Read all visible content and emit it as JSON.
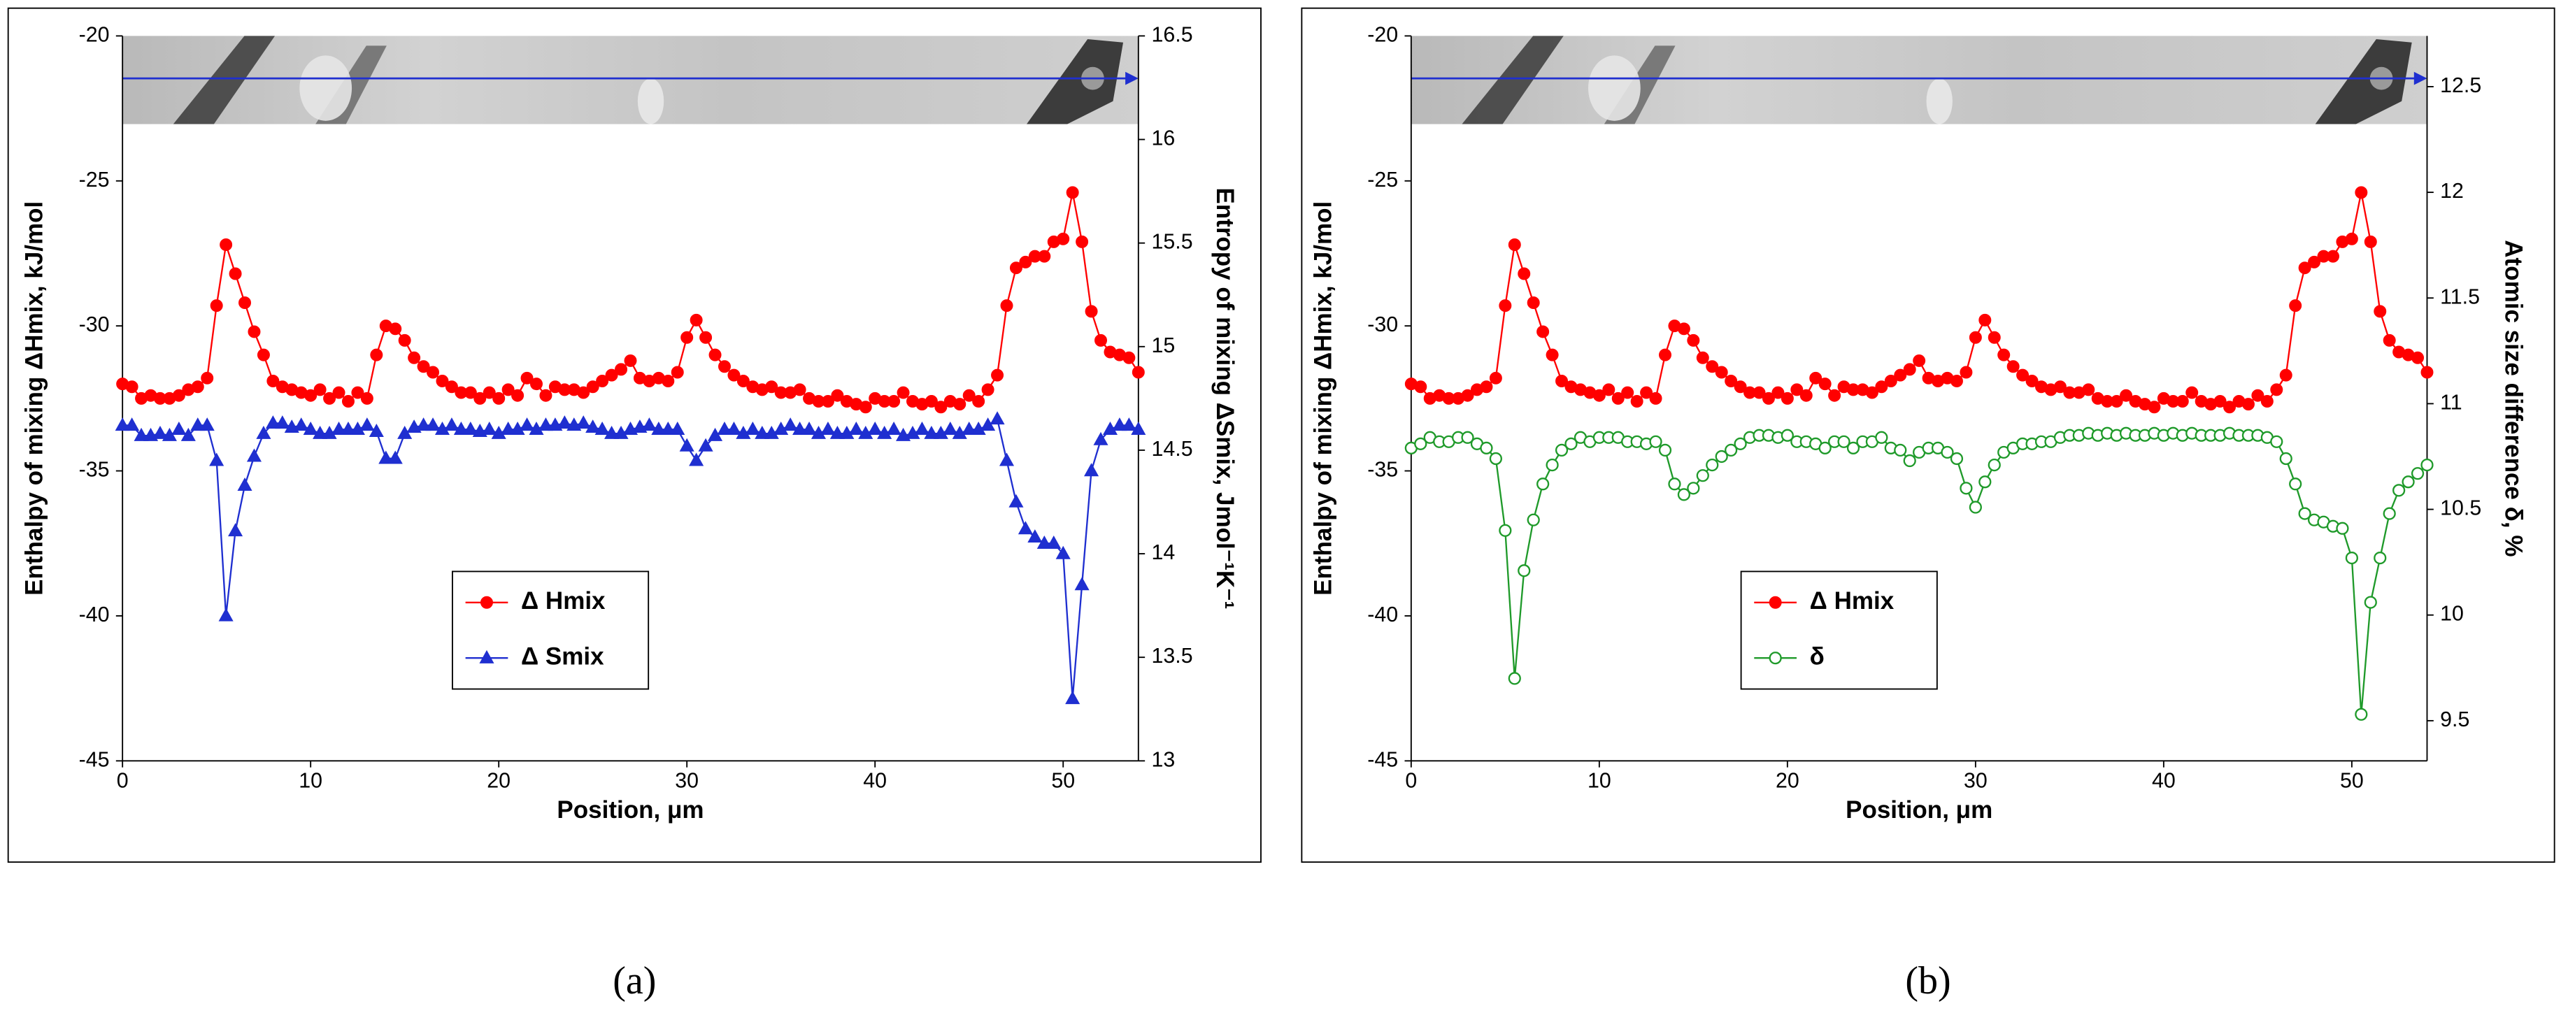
{
  "chart_data": [
    {
      "type": "line",
      "label": "(a)",
      "xlabel": "Position, μm",
      "ylabel": "Enthalpy of mixing  ΔHmix, kJ/mol",
      "y2label": "Entropy of mixing  ΔSmix, Jmol⁻¹K⁻¹",
      "xlim": [
        0,
        54
      ],
      "xticks": [
        0,
        10,
        20,
        30,
        40,
        50
      ],
      "ylim": [
        -45,
        -20
      ],
      "yticks": [
        -45,
        -40,
        -35,
        -30,
        -25,
        -20
      ],
      "y2lim": [
        13,
        16.5
      ],
      "y2ticks": [
        13,
        13.5,
        14,
        14.5,
        15,
        15.5,
        16,
        16.5
      ],
      "legend": "lower center",
      "x": [
        0,
        0.5,
        1,
        1.5,
        2,
        2.5,
        3,
        3.5,
        4,
        4.5,
        5,
        5.5,
        6,
        6.5,
        7,
        7.5,
        8,
        8.5,
        9,
        9.5,
        10,
        10.5,
        11,
        11.5,
        12,
        12.5,
        13,
        13.5,
        14,
        14.5,
        15,
        15.5,
        16,
        16.5,
        17,
        17.5,
        18,
        18.5,
        19,
        19.5,
        20,
        20.5,
        21,
        21.5,
        22,
        22.5,
        23,
        23.5,
        24,
        24.5,
        25,
        25.5,
        26,
        26.5,
        27,
        27.5,
        28,
        28.5,
        29,
        29.5,
        30,
        30.5,
        31,
        31.5,
        32,
        32.5,
        33,
        33.5,
        34,
        34.5,
        35,
        35.5,
        36,
        36.5,
        37,
        37.5,
        38,
        38.5,
        39,
        39.5,
        40,
        40.5,
        41,
        41.5,
        42,
        42.5,
        43,
        43.5,
        44,
        44.5,
        45,
        45.5,
        46,
        46.5,
        47,
        47.5,
        48,
        48.5,
        49,
        49.5,
        50,
        50.5,
        51,
        51.5,
        52,
        52.5,
        53,
        53.5,
        54
      ],
      "series": [
        {
          "name": "Δ Hmix",
          "color": "#ff0000",
          "marker": "circle",
          "values": [
            -32.0,
            -32.1,
            -32.5,
            -32.4,
            -32.5,
            -32.5,
            -32.4,
            -32.2,
            -32.1,
            -31.8,
            -29.3,
            -27.2,
            -28.2,
            -29.2,
            -30.2,
            -31.0,
            -31.9,
            -32.1,
            -32.2,
            -32.3,
            -32.4,
            -32.2,
            -32.5,
            -32.3,
            -32.6,
            -32.3,
            -32.5,
            -31.0,
            -30.0,
            -30.1,
            -30.5,
            -31.1,
            -31.4,
            -31.6,
            -31.9,
            -32.1,
            -32.3,
            -32.3,
            -32.5,
            -32.3,
            -32.5,
            -32.2,
            -32.4,
            -31.8,
            -32.0,
            -32.4,
            -32.1,
            -32.2,
            -32.2,
            -32.3,
            -32.1,
            -31.9,
            -31.7,
            -31.5,
            -31.2,
            -31.8,
            -31.9,
            -31.8,
            -31.9,
            -31.6,
            -30.4,
            -29.8,
            -30.4,
            -31.0,
            -31.4,
            -31.7,
            -31.9,
            -32.1,
            -32.2,
            -32.1,
            -32.3,
            -32.3,
            -32.2,
            -32.5,
            -32.6,
            -32.6,
            -32.4,
            -32.6,
            -32.7,
            -32.8,
            -32.5,
            -32.6,
            -32.6,
            -32.3,
            -32.6,
            -32.7,
            -32.6,
            -32.8,
            -32.6,
            -32.7,
            -32.4,
            -32.6,
            -32.2,
            -31.7,
            -29.3,
            -28.0,
            -27.8,
            -27.6,
            -27.6,
            -27.1,
            -27.0,
            -25.4,
            -27.1,
            -29.5,
            -30.5,
            -30.9,
            -31.0,
            -31.1,
            -31.6
          ]
        },
        {
          "name": "Δ Smix",
          "color": "#1f2fd0",
          "marker": "triangle",
          "axis": "y2",
          "values": [
            14.62,
            14.62,
            14.57,
            14.57,
            14.58,
            14.57,
            14.6,
            14.57,
            14.62,
            14.62,
            14.45,
            13.7,
            14.11,
            14.33,
            14.47,
            14.58,
            14.63,
            14.63,
            14.61,
            14.62,
            14.6,
            14.58,
            14.58,
            14.6,
            14.6,
            14.6,
            14.62,
            14.59,
            14.46,
            14.46,
            14.58,
            14.61,
            14.62,
            14.62,
            14.6,
            14.62,
            14.6,
            14.6,
            14.59,
            14.6,
            14.58,
            14.6,
            14.6,
            14.62,
            14.6,
            14.62,
            14.62,
            14.63,
            14.62,
            14.63,
            14.61,
            14.6,
            14.58,
            14.58,
            14.6,
            14.61,
            14.62,
            14.6,
            14.6,
            14.6,
            14.52,
            14.45,
            14.52,
            14.57,
            14.6,
            14.6,
            14.58,
            14.6,
            14.58,
            14.58,
            14.6,
            14.62,
            14.6,
            14.6,
            14.58,
            14.6,
            14.58,
            14.58,
            14.6,
            14.58,
            14.6,
            14.58,
            14.6,
            14.57,
            14.58,
            14.6,
            14.58,
            14.58,
            14.6,
            14.58,
            14.6,
            14.6,
            14.62,
            14.65,
            14.45,
            14.25,
            14.12,
            14.08,
            14.05,
            14.05,
            14.0,
            13.3,
            13.85,
            14.4,
            14.55,
            14.6,
            14.62,
            14.62,
            14.6
          ]
        }
      ]
    },
    {
      "type": "line",
      "label": "(b)",
      "xlabel": "Position, μm",
      "ylabel": "Enthalpy of mixing  ΔHmix, kJ/mol",
      "y2label": "Atomic size difference δ, %",
      "xlim": [
        0,
        54
      ],
      "xticks": [
        0,
        10,
        20,
        30,
        40,
        50
      ],
      "ylim": [
        -45,
        -20
      ],
      "yticks": [
        -45,
        -40,
        -35,
        -30,
        -25,
        -20
      ],
      "y2lim": [
        9.31,
        12.74
      ],
      "y2ticks": [
        9.5,
        10,
        10.5,
        11,
        11.5,
        12,
        12.5
      ],
      "legend": "lower center",
      "x": [
        0,
        0.5,
        1,
        1.5,
        2,
        2.5,
        3,
        3.5,
        4,
        4.5,
        5,
        5.5,
        6,
        6.5,
        7,
        7.5,
        8,
        8.5,
        9,
        9.5,
        10,
        10.5,
        11,
        11.5,
        12,
        12.5,
        13,
        13.5,
        14,
        14.5,
        15,
        15.5,
        16,
        16.5,
        17,
        17.5,
        18,
        18.5,
        19,
        19.5,
        20,
        20.5,
        21,
        21.5,
        22,
        22.5,
        23,
        23.5,
        24,
        24.5,
        25,
        25.5,
        26,
        26.5,
        27,
        27.5,
        28,
        28.5,
        29,
        29.5,
        30,
        30.5,
        31,
        31.5,
        32,
        32.5,
        33,
        33.5,
        34,
        34.5,
        35,
        35.5,
        36,
        36.5,
        37,
        37.5,
        38,
        38.5,
        39,
        39.5,
        40,
        40.5,
        41,
        41.5,
        42,
        42.5,
        43,
        43.5,
        44,
        44.5,
        45,
        45.5,
        46,
        46.5,
        47,
        47.5,
        48,
        48.5,
        49,
        49.5,
        50,
        50.5,
        51,
        51.5,
        52,
        52.5,
        53,
        53.5,
        54
      ],
      "series": [
        {
          "name": "Δ Hmix",
          "color": "#ff0000",
          "marker": "circle",
          "values": [
            -32.0,
            -32.1,
            -32.5,
            -32.4,
            -32.5,
            -32.5,
            -32.4,
            -32.2,
            -32.1,
            -31.8,
            -29.3,
            -27.2,
            -28.2,
            -29.2,
            -30.2,
            -31.0,
            -31.9,
            -32.1,
            -32.2,
            -32.3,
            -32.4,
            -32.2,
            -32.5,
            -32.3,
            -32.6,
            -32.3,
            -32.5,
            -31.0,
            -30.0,
            -30.1,
            -30.5,
            -31.1,
            -31.4,
            -31.6,
            -31.9,
            -32.1,
            -32.3,
            -32.3,
            -32.5,
            -32.3,
            -32.5,
            -32.2,
            -32.4,
            -31.8,
            -32.0,
            -32.4,
            -32.1,
            -32.2,
            -32.2,
            -32.3,
            -32.1,
            -31.9,
            -31.7,
            -31.5,
            -31.2,
            -31.8,
            -31.9,
            -31.8,
            -31.9,
            -31.6,
            -30.4,
            -29.8,
            -30.4,
            -31.0,
            -31.4,
            -31.7,
            -31.9,
            -32.1,
            -32.2,
            -32.1,
            -32.3,
            -32.3,
            -32.2,
            -32.5,
            -32.6,
            -32.6,
            -32.4,
            -32.6,
            -32.7,
            -32.8,
            -32.5,
            -32.6,
            -32.6,
            -32.3,
            -32.6,
            -32.7,
            -32.6,
            -32.8,
            -32.6,
            -32.7,
            -32.4,
            -32.6,
            -32.2,
            -31.7,
            -29.3,
            -28.0,
            -27.8,
            -27.6,
            -27.6,
            -27.1,
            -27.0,
            -25.4,
            -27.1,
            -29.5,
            -30.5,
            -30.9,
            -31.0,
            -31.1,
            -31.6
          ]
        },
        {
          "name": "δ",
          "color": "#1f9a2a",
          "marker": "circle-open",
          "axis": "y2",
          "values": [
            10.79,
            10.81,
            10.84,
            10.82,
            10.82,
            10.84,
            10.84,
            10.81,
            10.79,
            10.74,
            10.4,
            9.7,
            10.21,
            10.45,
            10.62,
            10.71,
            10.78,
            10.81,
            10.84,
            10.82,
            10.84,
            10.84,
            10.84,
            10.82,
            10.82,
            10.81,
            10.82,
            10.78,
            10.62,
            10.57,
            10.6,
            10.66,
            10.71,
            10.75,
            10.78,
            10.81,
            10.84,
            10.85,
            10.85,
            10.84,
            10.85,
            10.82,
            10.82,
            10.81,
            10.79,
            10.82,
            10.82,
            10.79,
            10.82,
            10.82,
            10.84,
            10.79,
            10.78,
            10.73,
            10.77,
            10.79,
            10.79,
            10.77,
            10.74,
            10.6,
            10.51,
            10.63,
            10.71,
            10.77,
            10.79,
            10.81,
            10.81,
            10.82,
            10.82,
            10.84,
            10.85,
            10.85,
            10.86,
            10.85,
            10.86,
            10.85,
            10.86,
            10.85,
            10.85,
            10.86,
            10.85,
            10.86,
            10.85,
            10.86,
            10.85,
            10.85,
            10.85,
            10.86,
            10.85,
            10.85,
            10.85,
            10.84,
            10.82,
            10.74,
            10.62,
            10.48,
            10.45,
            10.44,
            10.42,
            10.41,
            10.27,
            9.53,
            10.06,
            10.27,
            10.48,
            10.59,
            10.63,
            10.67,
            10.71
          ]
        }
      ]
    }
  ]
}
